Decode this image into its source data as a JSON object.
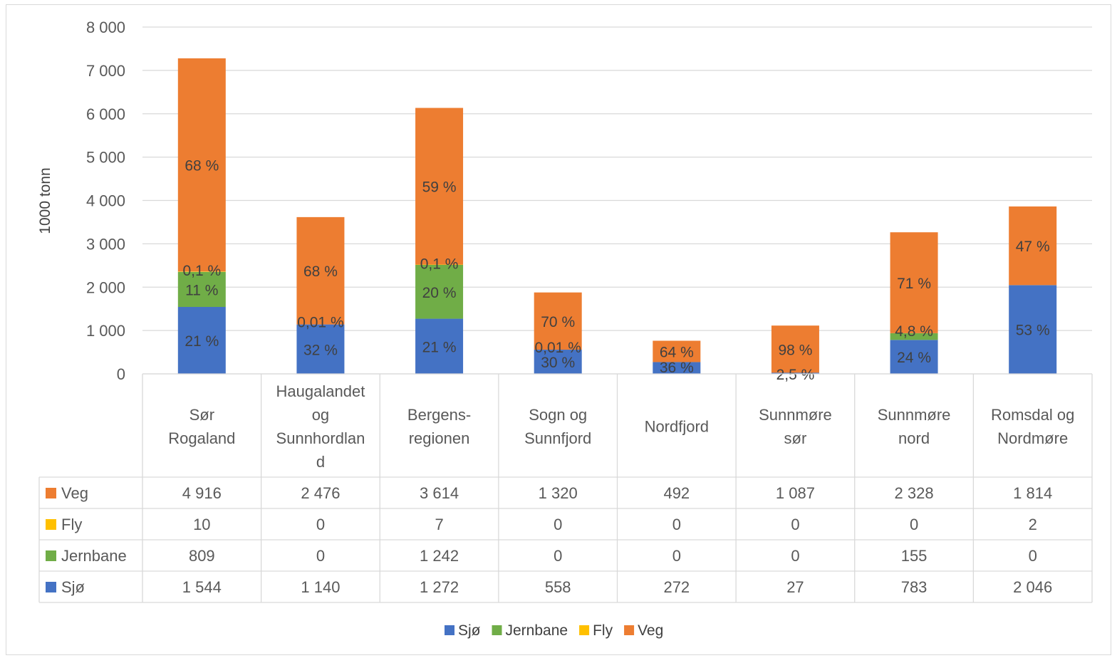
{
  "chart_data": {
    "type": "bar",
    "stacked": true,
    "ylabel": "1000 tonn",
    "ylim": [
      0,
      8000
    ],
    "yticks": [
      "0",
      "1 000",
      "2 000",
      "3 000",
      "4 000",
      "5 000",
      "6 000",
      "7 000",
      "8 000"
    ],
    "grid": true,
    "legend_position": "bottom",
    "categories": [
      [
        "Sør",
        "Rogaland"
      ],
      [
        "Haugalandet",
        "og",
        "Sunnhordlan",
        "d"
      ],
      [
        "Bergens-",
        "regionen"
      ],
      [
        "Sogn og",
        "Sunnfjord"
      ],
      [
        "Nordfjord"
      ],
      [
        "Sunnmøre",
        "sør"
      ],
      [
        "Sunnmøre",
        "nord"
      ],
      [
        "Romsdal og",
        "Nordmøre"
      ]
    ],
    "series": [
      {
        "name": "Sjø",
        "color": "#4472c4",
        "values": [
          1544,
          1140,
          1272,
          558,
          272,
          27,
          783,
          2046
        ],
        "table_values": [
          "1 544",
          "1 140",
          "1 272",
          "558",
          "272",
          "27",
          "783",
          "2 046"
        ],
        "labels": [
          "21 %",
          "32 %",
          "21 %",
          "30 %",
          "36 %",
          "2,5 %",
          "24 %",
          "53 %"
        ]
      },
      {
        "name": "Jernbane",
        "color": "#70ad47",
        "values": [
          809,
          0,
          1242,
          0,
          0,
          0,
          155,
          0
        ],
        "table_values": [
          "809",
          "0",
          "1 242",
          "0",
          "0",
          "0",
          "155",
          "0"
        ],
        "labels": [
          "11 %",
          "",
          "20 %",
          "",
          "",
          "",
          "4,8 %",
          ""
        ]
      },
      {
        "name": "Fly",
        "color": "#ffc000",
        "values": [
          10,
          0,
          7,
          0,
          0,
          0,
          0,
          2
        ],
        "table_values": [
          "10",
          "0",
          "7",
          "0",
          "0",
          "0",
          "0",
          "2"
        ],
        "labels": [
          "0,1 %",
          "0,01 %",
          "0,1 %",
          "0,01 %",
          "",
          "",
          "",
          ""
        ]
      },
      {
        "name": "Veg",
        "color": "#ed7d31",
        "values": [
          4916,
          2476,
          3614,
          1320,
          492,
          1087,
          2328,
          1814
        ],
        "table_values": [
          "4 916",
          "2 476",
          "3 614",
          "1 320",
          "492",
          "1 087",
          "2 328",
          "1 814"
        ],
        "labels": [
          "68 %",
          "68 %",
          "59 %",
          "70 %",
          "64 %",
          "98 %",
          "71 %",
          "47 %"
        ]
      }
    ],
    "table_row_order": [
      "Veg",
      "Fly",
      "Jernbane",
      "Sjø"
    ]
  }
}
